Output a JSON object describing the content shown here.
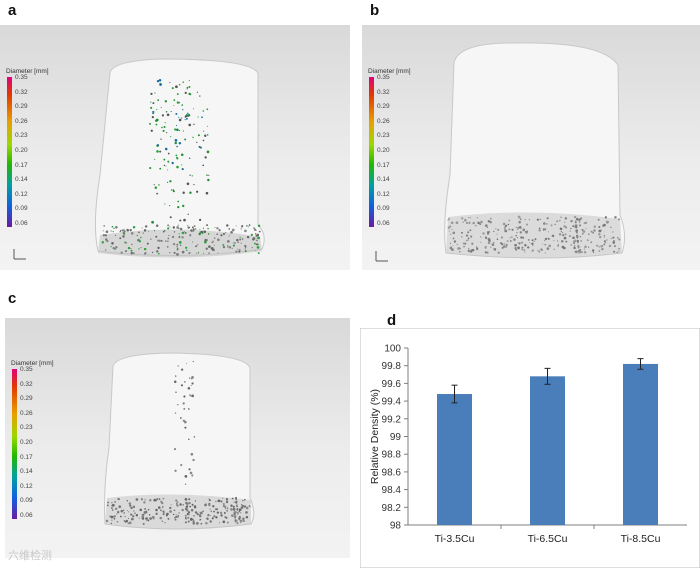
{
  "panels": [
    {
      "label": "a",
      "scale_title": "Diameter [mm]"
    },
    {
      "label": "b",
      "scale_title": "Diameter [mm]"
    },
    {
      "label": "c",
      "scale_title": "Diameter [mm]"
    },
    {
      "label": "d"
    }
  ],
  "colorbar_ticks": [
    "0.35",
    "0.32",
    "0.29",
    "0.26",
    "0.23",
    "0.20",
    "0.17",
    "0.14",
    "0.12",
    "0.09",
    "0.06"
  ],
  "watermark": "六维检测",
  "chart_data": {
    "type": "bar",
    "categories": [
      "Ti-3.5Cu",
      "Ti-6.5Cu",
      "Ti-8.5Cu"
    ],
    "values": [
      99.48,
      99.68,
      99.82
    ],
    "errors": [
      0.1,
      0.09,
      0.06
    ],
    "ylabel": "Relative Density (%)",
    "xlabel": "",
    "ylim": [
      98,
      100
    ],
    "yticks": [
      "98",
      "98.2",
      "98.4",
      "98.6",
      "98.8",
      "99",
      "99.2",
      "99.4",
      "99.6",
      "99.8",
      "100"
    ],
    "bar_color": "#4a7ebb",
    "grid": false
  }
}
